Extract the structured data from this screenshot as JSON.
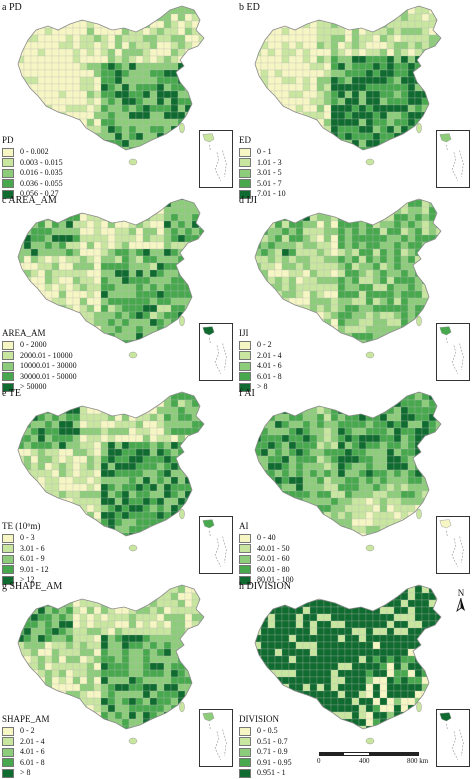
{
  "colors": {
    "c1": "#f6f6c4",
    "c2": "#c9e6a1",
    "c3": "#8dcc7a",
    "c4": "#48a84e",
    "c5": "#0f6b2f",
    "border": "#b9b9b9",
    "background": "#ffffff"
  },
  "panels": [
    {
      "title": "a  PD",
      "legend_title": "PD",
      "classes": [
        "0 - 0.002",
        "0.003 - 0.015",
        "0.016 - 0.035",
        "0.036 - 0.055",
        "0.056 - 0.27"
      ],
      "pattern": "pd"
    },
    {
      "title": "b  ED",
      "legend_title": "ED",
      "classes": [
        "0 - 1",
        "1.01 - 3",
        "3.01 - 5",
        "5.01 - 7",
        "7.01 - 10"
      ],
      "pattern": "ed"
    },
    {
      "title": "c  AREA_AM",
      "legend_title": "AREA_AM",
      "classes": [
        "0 - 2000",
        "2000.01 - 10000",
        "10000.01 - 30000",
        "30000.01 - 50000",
        "> 50000"
      ],
      "pattern": "area"
    },
    {
      "title": "d  IJI",
      "legend_title": "IJI",
      "classes": [
        "0 - 2",
        "2.01 - 4",
        "4.01 - 6",
        "6.01 - 8",
        "> 8"
      ],
      "pattern": "iji"
    },
    {
      "title": "e  TE",
      "legend_title": "TE (10⁶m)",
      "classes": [
        "0 - 3",
        "3.01 - 6",
        "6.01 - 9",
        "9.01 - 12",
        "> 12"
      ],
      "pattern": "te"
    },
    {
      "title": "f  AI",
      "legend_title": "AI",
      "classes": [
        "0 - 40",
        "40.01 - 50",
        "50.01 - 60",
        "60.01 - 80",
        "80.01 - 100"
      ],
      "pattern": "ai"
    },
    {
      "title": "g  SHAPE_AM",
      "legend_title": "SHAPE_AM",
      "classes": [
        "0 - 2",
        "2.01 - 4",
        "4.01 - 6",
        "6.01 - 8",
        "> 8"
      ],
      "pattern": "shape"
    },
    {
      "title": "h  DIVISION",
      "legend_title": "DIVISION",
      "classes": [
        "0 - 0.5",
        "0.51 - 0.7",
        "0.71 - 0.9",
        "0.91 - 0.95",
        "0.951 - 1"
      ],
      "pattern": "division"
    }
  ],
  "north_arrow": {
    "label": "N"
  },
  "scale_bar": {
    "labels": [
      "0",
      "400",
      "800 km"
    ]
  }
}
